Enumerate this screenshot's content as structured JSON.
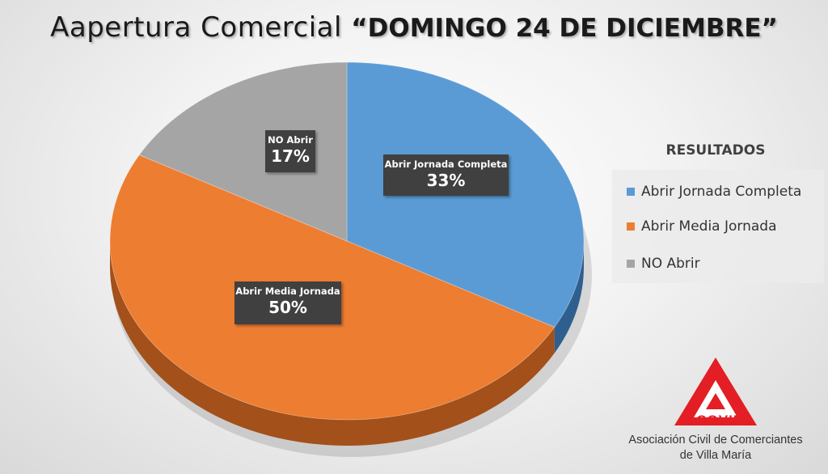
{
  "title_prefix": "Aapertura Comercial ",
  "title_open_quote": "“",
  "title_main": "DOMINGO 24 DE DICIEMBRE",
  "title_close_quote": "”",
  "chart_data": {
    "type": "pie",
    "legend_title": "RESULTADOS",
    "legend_placement": "right",
    "slices": [
      {
        "name": "Abrir Jornada Completa",
        "label": "Abrir Jornada Completa",
        "value": 33,
        "display": "33%",
        "color": "#5b9bd5",
        "side_color": "#2f5f8f"
      },
      {
        "name": "Abrir Media Jornada",
        "label": "Abrir Media Jornada",
        "value": 50,
        "display": "50%",
        "color": "#ed7d31",
        "side_color": "#a3501a"
      },
      {
        "name": "NO Abrir",
        "label": "NO Abrir",
        "value": 17,
        "display": "17%",
        "color": "#a5a5a5",
        "side_color": "#707070"
      }
    ]
  },
  "logo": {
    "text": "ACOVIM",
    "color": "#e31e24",
    "org_line1": "Asociación Civil de Comerciantes",
    "org_line2": "de Villa María"
  }
}
